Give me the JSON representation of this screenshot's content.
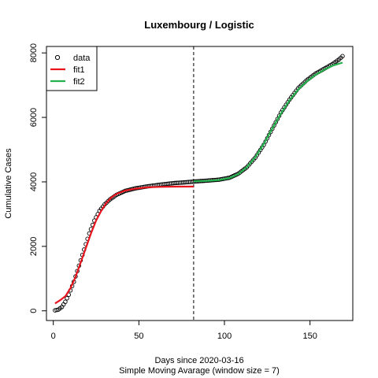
{
  "chart_data": {
    "type": "scatter",
    "title": "Luxembourg / Logistic",
    "xlabel": "Days since 2020-03-16",
    "xlabel_sub": "Simple Moving Avarage (window size = 7)",
    "ylabel": "Cumulative Cases",
    "xlim": [
      -4,
      175
    ],
    "ylim": [
      -300,
      8200
    ],
    "x_ticks": [
      0,
      50,
      100,
      150
    ],
    "y_ticks": [
      0,
      2000,
      4000,
      6000,
      8000
    ],
    "grid": false,
    "legend_position": "top-left",
    "vline": {
      "x": 82,
      "style": "dashed",
      "color": "#000000"
    },
    "data_series": {
      "name": "data",
      "marker": "open-circle",
      "color": "#000000",
      "x_start": 1,
      "x_end": 169,
      "anchors": [
        [
          1,
          15
        ],
        [
          3,
          40
        ],
        [
          5,
          120
        ],
        [
          7,
          280
        ],
        [
          9,
          500
        ],
        [
          12,
          900
        ],
        [
          15,
          1400
        ],
        [
          18,
          1900
        ],
        [
          21,
          2400
        ],
        [
          24,
          2800
        ],
        [
          27,
          3100
        ],
        [
          30,
          3300
        ],
        [
          33,
          3450
        ],
        [
          37,
          3600
        ],
        [
          42,
          3720
        ],
        [
          48,
          3800
        ],
        [
          55,
          3860
        ],
        [
          62,
          3910
        ],
        [
          70,
          3960
        ],
        [
          78,
          3990
        ],
        [
          82,
          4010
        ],
        [
          90,
          4040
        ],
        [
          97,
          4070
        ],
        [
          103,
          4130
        ],
        [
          108,
          4250
        ],
        [
          113,
          4450
        ],
        [
          118,
          4750
        ],
        [
          123,
          5150
        ],
        [
          128,
          5650
        ],
        [
          133,
          6150
        ],
        [
          138,
          6550
        ],
        [
          143,
          6900
        ],
        [
          148,
          7150
        ],
        [
          153,
          7350
        ],
        [
          158,
          7500
        ],
        [
          163,
          7650
        ],
        [
          167,
          7800
        ],
        [
          169,
          7900
        ]
      ]
    },
    "series": [
      {
        "name": "fit1",
        "color": "#e8141e",
        "points": [
          [
            1,
            230
          ],
          [
            4,
            330
          ],
          [
            7,
            450
          ],
          [
            10,
            700
          ],
          [
            13,
            1050
          ],
          [
            16,
            1500
          ],
          [
            19,
            1950
          ],
          [
            22,
            2400
          ],
          [
            25,
            2800
          ],
          [
            28,
            3100
          ],
          [
            31,
            3350
          ],
          [
            34,
            3520
          ],
          [
            37,
            3630
          ],
          [
            42,
            3730
          ],
          [
            48,
            3790
          ],
          [
            55,
            3830
          ],
          [
            62,
            3845
          ],
          [
            70,
            3852
          ],
          [
            82,
            3855
          ]
        ]
      },
      {
        "name": "fit2",
        "color": "#22b14c",
        "points": [
          [
            82,
            4020
          ],
          [
            90,
            4030
          ],
          [
            97,
            4060
          ],
          [
            103,
            4120
          ],
          [
            108,
            4240
          ],
          [
            113,
            4450
          ],
          [
            118,
            4760
          ],
          [
            123,
            5180
          ],
          [
            128,
            5660
          ],
          [
            133,
            6120
          ],
          [
            138,
            6530
          ],
          [
            143,
            6860
          ],
          [
            148,
            7110
          ],
          [
            153,
            7310
          ],
          [
            158,
            7470
          ],
          [
            163,
            7600
          ],
          [
            169,
            7700
          ]
        ]
      }
    ],
    "legend": [
      {
        "label": "data",
        "kind": "circle",
        "color": "#000000"
      },
      {
        "label": "fit1",
        "kind": "line",
        "color": "#e8141e"
      },
      {
        "label": "fit2",
        "kind": "line",
        "color": "#22b14c"
      }
    ]
  }
}
